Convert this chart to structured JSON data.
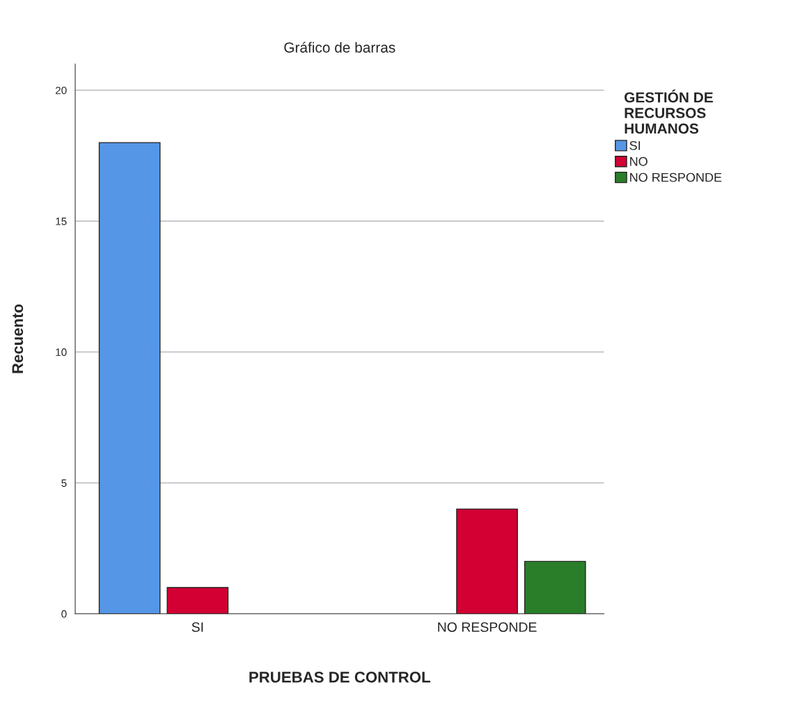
{
  "chart_data": {
    "type": "bar",
    "title": "Gráfico de barras",
    "xlabel": "PRUEBAS DE CONTROL",
    "ylabel": "Recuento",
    "legend_title": "GESTIÓN DE\nRECURSOS\nHUMANOS",
    "categories": [
      "SI",
      "NO RESPONDE"
    ],
    "series": [
      {
        "name": "SI",
        "color": "#5596e6",
        "values": [
          18,
          null
        ]
      },
      {
        "name": "NO",
        "color": "#d20033",
        "values": [
          1,
          4
        ]
      },
      {
        "name": "NO RESPONDE",
        "color": "#2a7e2a",
        "values": [
          null,
          2
        ]
      }
    ],
    "ylim": [
      0,
      21
    ],
    "yticks": [
      0,
      5,
      10,
      15,
      20
    ],
    "grid": "y",
    "legend": "top right"
  }
}
